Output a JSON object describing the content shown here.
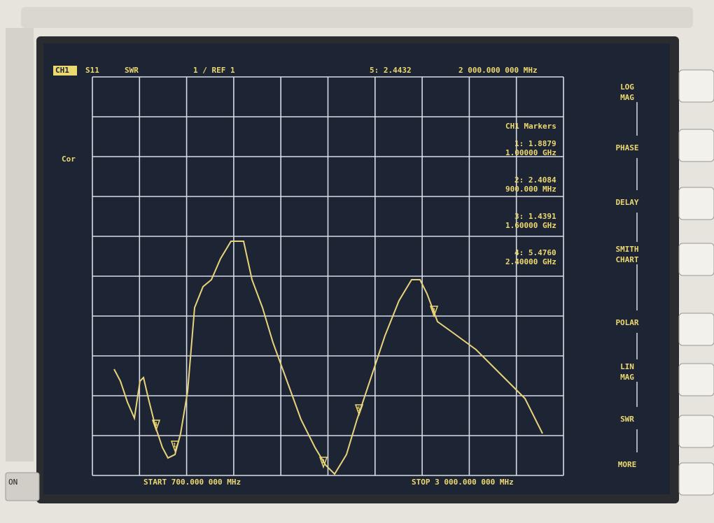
{
  "header": {
    "channel": "CH1",
    "parameter": "S11",
    "format": "SWR",
    "scale": "1 / REF 1",
    "active_marker": "5: 2.4432",
    "marker_frequency": "2 000.000 000 MHz"
  },
  "status": "Cor",
  "markers_panel": {
    "title": "CH1 Markers",
    "entries": [
      {
        "value": "1: 1.8879",
        "frequency": "1.00000 GHz"
      },
      {
        "value": "2: 2.4084",
        "frequency": "900.000 MHz"
      },
      {
        "value": "3: 1.4391",
        "frequency": "1.60000 GHz"
      },
      {
        "value": "4: 5.4760",
        "frequency": "2.40000 GHz"
      }
    ]
  },
  "trace_markers": [
    "4",
    "1",
    "2",
    "5",
    "3"
  ],
  "footer": {
    "start": "START 700.000 000 MHz",
    "stop": "STOP 3 000.000 000 MHz"
  },
  "softkeys": [
    "LOG MAG",
    "PHASE",
    "DELAY",
    "SMITH CHART",
    "POLAR",
    "LIN MAG",
    "SWR",
    "MORE"
  ],
  "power_label": "ON"
}
